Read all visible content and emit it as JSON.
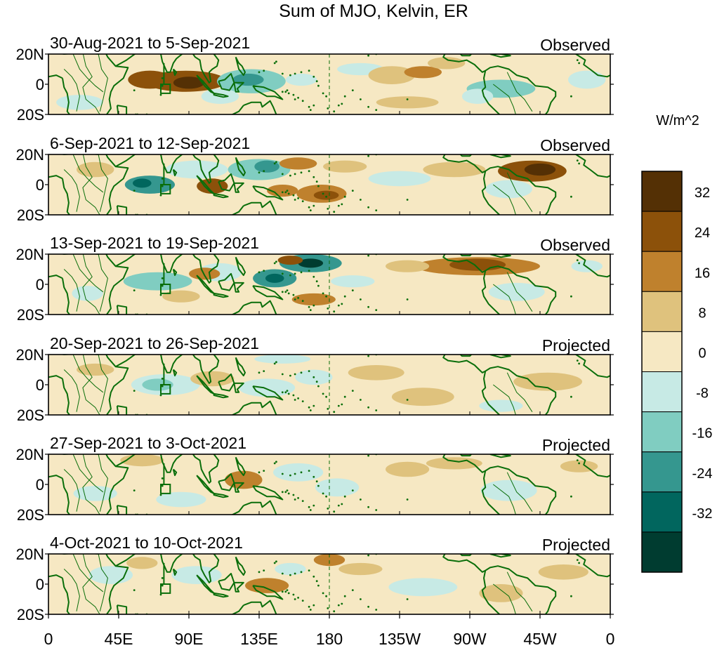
{
  "title": "Sum of MJO, Kelvin, ER",
  "axes": {
    "lat_labels": [
      "20N",
      "0",
      "20S"
    ],
    "lon_labels": [
      "0",
      "45E",
      "90E",
      "135E",
      "180",
      "135W",
      "90W",
      "45W",
      "0"
    ]
  },
  "colorbar": {
    "unit": "W/m^2",
    "levels": [
      32,
      24,
      16,
      8,
      0,
      -8,
      -16,
      -24,
      -32
    ],
    "colors": [
      "#543005",
      "#8c510a",
      "#bf812d",
      "#dfc27d",
      "#f6e8c3",
      "#c7eae5",
      "#80cdc1",
      "#35978f",
      "#01665e",
      "#003c30"
    ]
  },
  "panels": [
    {
      "period": "30-Aug-2021 to 5-Sep-2021",
      "status": "Observed",
      "features": [
        {
          "lon": 88,
          "lat": 2,
          "rlon": 26,
          "rlat": 7,
          "level": 3
        },
        {
          "lon": 65,
          "lat": 3,
          "rlon": 14,
          "rlat": 6,
          "level": 3
        },
        {
          "lon": 90,
          "lat": 1,
          "rlon": 10,
          "rlat": 4,
          "level": 4
        },
        {
          "lon": 130,
          "lat": 2,
          "rlon": 22,
          "rlat": 8,
          "level": -2
        },
        {
          "lon": 128,
          "lat": 3,
          "rlon": 10,
          "rlat": 4,
          "level": -3
        },
        {
          "lon": 110,
          "lat": -8,
          "rlon": 12,
          "rlat": 5,
          "level": -1
        },
        {
          "lon": 162,
          "lat": 3,
          "rlon": 10,
          "rlat": 4,
          "level": -1
        },
        {
          "lon": 200,
          "lat": 10,
          "rlon": 15,
          "rlat": 4,
          "level": -1
        },
        {
          "lon": 220,
          "lat": 6,
          "rlon": 15,
          "rlat": 6,
          "level": 1
        },
        {
          "lon": 240,
          "lat": 8,
          "rlon": 12,
          "rlat": 4,
          "level": 2
        },
        {
          "lon": 290,
          "lat": -3,
          "rlon": 22,
          "rlat": 6,
          "level": -2
        },
        {
          "lon": 275,
          "lat": -8,
          "rlon": 10,
          "rlat": 5,
          "level": -1
        },
        {
          "lon": 255,
          "lat": 14,
          "rlon": 12,
          "rlat": 4,
          "level": 1
        },
        {
          "lon": 345,
          "lat": 3,
          "rlon": 12,
          "rlat": 6,
          "level": -1
        },
        {
          "lon": 20,
          "lat": -12,
          "rlon": 15,
          "rlat": 5,
          "level": -1
        },
        {
          "lon": 230,
          "lat": -12,
          "rlon": 20,
          "rlat": 4,
          "level": 1
        }
      ]
    },
    {
      "period": "6-Sep-2021 to 12-Sep-2021",
      "status": "Observed",
      "features": [
        {
          "lon": 65,
          "lat": 0,
          "rlon": 16,
          "rlat": 6,
          "level": -3
        },
        {
          "lon": 60,
          "lat": 1,
          "rlon": 6,
          "rlat": 3,
          "level": -4
        },
        {
          "lon": 95,
          "lat": 10,
          "rlon": 20,
          "rlat": 6,
          "level": -1
        },
        {
          "lon": 135,
          "lat": 10,
          "rlon": 20,
          "rlat": 7,
          "level": -2
        },
        {
          "lon": 140,
          "lat": 12,
          "rlon": 8,
          "rlat": 4,
          "level": -3
        },
        {
          "lon": 105,
          "lat": -1,
          "rlon": 10,
          "rlat": 5,
          "level": 3
        },
        {
          "lon": 150,
          "lat": -4,
          "rlon": 10,
          "rlat": 4,
          "level": 2
        },
        {
          "lon": 175,
          "lat": -6,
          "rlon": 16,
          "rlat": 6,
          "level": 2
        },
        {
          "lon": 178,
          "lat": -7,
          "rlon": 8,
          "rlat": 3,
          "level": 3
        },
        {
          "lon": 160,
          "lat": 14,
          "rlon": 12,
          "rlat": 4,
          "level": 2
        },
        {
          "lon": 190,
          "lat": 12,
          "rlon": 14,
          "rlat": 4,
          "level": 1
        },
        {
          "lon": 225,
          "lat": 4,
          "rlon": 20,
          "rlat": 5,
          "level": -1
        },
        {
          "lon": 260,
          "lat": 10,
          "rlon": 20,
          "rlat": 5,
          "level": 1
        },
        {
          "lon": 310,
          "lat": 9,
          "rlon": 22,
          "rlat": 7,
          "level": 3
        },
        {
          "lon": 315,
          "lat": 10,
          "rlon": 10,
          "rlat": 4,
          "level": 4
        },
        {
          "lon": 295,
          "lat": -3,
          "rlon": 15,
          "rlat": 6,
          "level": -1
        },
        {
          "lon": 30,
          "lat": 10,
          "rlon": 12,
          "rlat": 5,
          "level": 1
        }
      ]
    },
    {
      "period": "13-Sep-2021 to 19-Sep-2021",
      "status": "Observed",
      "features": [
        {
          "lon": 168,
          "lat": 14,
          "rlon": 20,
          "rlat": 6,
          "level": -3
        },
        {
          "lon": 168,
          "lat": 14,
          "rlon": 8,
          "rlat": 3,
          "level": -5
        },
        {
          "lon": 145,
          "lat": 4,
          "rlon": 14,
          "rlat": 6,
          "level": -3
        },
        {
          "lon": 145,
          "lat": 4,
          "rlon": 6,
          "rlat": 3,
          "level": -4
        },
        {
          "lon": 70,
          "lat": 2,
          "rlon": 22,
          "rlat": 6,
          "level": -2
        },
        {
          "lon": 110,
          "lat": 8,
          "rlon": 14,
          "rlat": 6,
          "level": -1
        },
        {
          "lon": 155,
          "lat": 16,
          "rlon": 8,
          "rlat": 3,
          "level": 3
        },
        {
          "lon": 100,
          "lat": 7,
          "rlon": 10,
          "rlat": 4,
          "level": 2
        },
        {
          "lon": 85,
          "lat": -8,
          "rlon": 12,
          "rlat": 4,
          "level": 1
        },
        {
          "lon": 170,
          "lat": -10,
          "rlon": 14,
          "rlat": 4,
          "level": 2
        },
        {
          "lon": 195,
          "lat": 2,
          "rlon": 14,
          "rlat": 4,
          "level": -1
        },
        {
          "lon": 275,
          "lat": 12,
          "rlon": 40,
          "rlat": 6,
          "level": 2
        },
        {
          "lon": 275,
          "lat": 13,
          "rlon": 18,
          "rlat": 4,
          "level": 3
        },
        {
          "lon": 230,
          "lat": 12,
          "rlon": 14,
          "rlat": 4,
          "level": 1
        },
        {
          "lon": 300,
          "lat": -5,
          "rlon": 18,
          "rlat": 6,
          "level": -1
        },
        {
          "lon": 25,
          "lat": -6,
          "rlon": 10,
          "rlat": 5,
          "level": -1
        },
        {
          "lon": 345,
          "lat": 12,
          "rlon": 10,
          "rlat": 4,
          "level": -1
        }
      ]
    },
    {
      "period": "20-Sep-2021 to 26-Sep-2021",
      "status": "Projected",
      "features": [
        {
          "lon": 75,
          "lat": 0,
          "rlon": 22,
          "rlat": 7,
          "level": -1
        },
        {
          "lon": 70,
          "lat": 0,
          "rlon": 10,
          "rlat": 4,
          "level": -2
        },
        {
          "lon": 150,
          "lat": 17,
          "rlon": 18,
          "rlat": 3,
          "level": -1
        },
        {
          "lon": 170,
          "lat": 5,
          "rlon": 12,
          "rlat": 5,
          "level": -1
        },
        {
          "lon": 140,
          "lat": -2,
          "rlon": 18,
          "rlat": 6,
          "level": -1
        },
        {
          "lon": 240,
          "lat": -8,
          "rlon": 20,
          "rlat": 6,
          "level": 1
        },
        {
          "lon": 210,
          "lat": 8,
          "rlon": 18,
          "rlat": 5,
          "level": 1
        },
        {
          "lon": 105,
          "lat": 4,
          "rlon": 14,
          "rlat": 5,
          "level": 1
        },
        {
          "lon": 30,
          "lat": 10,
          "rlon": 12,
          "rlat": 4,
          "level": 1
        },
        {
          "lon": 320,
          "lat": 2,
          "rlon": 22,
          "rlat": 6,
          "level": 1
        },
        {
          "lon": 290,
          "lat": -14,
          "rlon": 14,
          "rlat": 4,
          "level": -1
        }
      ]
    },
    {
      "period": "27-Sep-2021 to 3-Oct-2021",
      "status": "Projected",
      "features": [
        {
          "lon": 125,
          "lat": 3,
          "rlon": 12,
          "rlat": 6,
          "level": 2
        },
        {
          "lon": 60,
          "lat": 16,
          "rlon": 14,
          "rlat": 4,
          "level": 1
        },
        {
          "lon": 85,
          "lat": -10,
          "rlon": 16,
          "rlat": 5,
          "level": -1
        },
        {
          "lon": 160,
          "lat": 8,
          "rlon": 16,
          "rlat": 6,
          "level": -1
        },
        {
          "lon": 185,
          "lat": -2,
          "rlon": 14,
          "rlat": 6,
          "level": -1
        },
        {
          "lon": 230,
          "lat": 10,
          "rlon": 14,
          "rlat": 5,
          "level": 1
        },
        {
          "lon": 295,
          "lat": -4,
          "rlon": 18,
          "rlat": 7,
          "level": -1
        },
        {
          "lon": 30,
          "lat": -6,
          "rlon": 14,
          "rlat": 5,
          "level": -1
        },
        {
          "lon": 260,
          "lat": 14,
          "rlon": 18,
          "rlat": 4,
          "level": 1
        },
        {
          "lon": 340,
          "lat": 12,
          "rlon": 12,
          "rlat": 4,
          "level": 1
        }
      ]
    },
    {
      "period": "4-Oct-2021 to 10-Oct-2021",
      "status": "Projected",
      "features": [
        {
          "lon": 140,
          "lat": -1,
          "rlon": 14,
          "rlat": 5,
          "level": 2
        },
        {
          "lon": 180,
          "lat": 16,
          "rlon": 10,
          "rlat": 4,
          "level": 2
        },
        {
          "lon": 200,
          "lat": 10,
          "rlon": 14,
          "rlat": 4,
          "level": 1
        },
        {
          "lon": 95,
          "lat": 6,
          "rlon": 16,
          "rlat": 6,
          "level": -1
        },
        {
          "lon": 155,
          "lat": 10,
          "rlon": 10,
          "rlat": 4,
          "level": -1
        },
        {
          "lon": 240,
          "lat": -2,
          "rlon": 22,
          "rlat": 6,
          "level": -1
        },
        {
          "lon": 290,
          "lat": -6,
          "rlon": 14,
          "rlat": 6,
          "level": 1
        },
        {
          "lon": 40,
          "lat": 6,
          "rlon": 14,
          "rlat": 6,
          "level": -1
        },
        {
          "lon": 60,
          "lat": 14,
          "rlon": 10,
          "rlat": 4,
          "level": 1
        },
        {
          "lon": 330,
          "lat": 8,
          "rlon": 16,
          "rlat": 5,
          "level": 1
        }
      ]
    }
  ]
}
